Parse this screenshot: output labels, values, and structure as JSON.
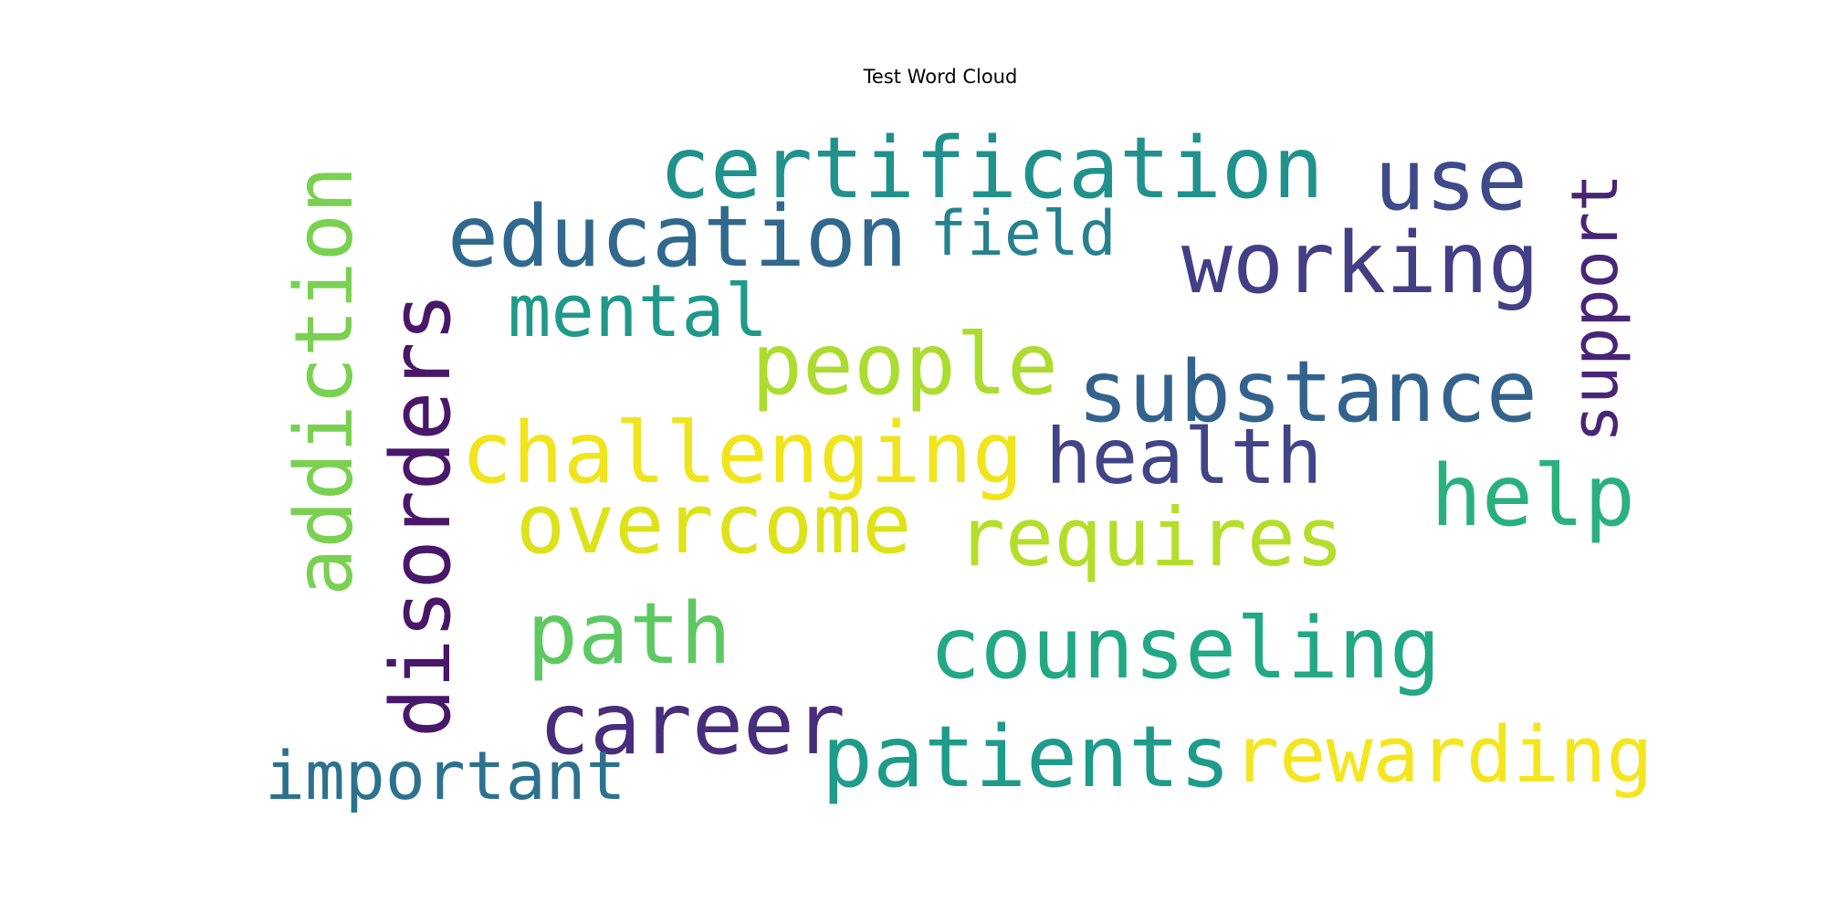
{
  "title": "Test Word Cloud",
  "words": [
    {
      "text": "certification",
      "color": "#21918c"
    },
    {
      "text": "use",
      "color": "#3e4a89"
    },
    {
      "text": "support",
      "color": "#482576"
    },
    {
      "text": "education",
      "color": "#31688e"
    },
    {
      "text": "field",
      "color": "#26828e"
    },
    {
      "text": "working",
      "color": "#433e85"
    },
    {
      "text": "addiction",
      "color": "#7ad151"
    },
    {
      "text": "disorders",
      "color": "#481769"
    },
    {
      "text": "mental",
      "color": "#1f998a"
    },
    {
      "text": "people",
      "color": "#addc30"
    },
    {
      "text": "substance",
      "color": "#33638d"
    },
    {
      "text": "challenging",
      "color": "#f0e51c"
    },
    {
      "text": "health",
      "color": "#414487"
    },
    {
      "text": "help",
      "color": "#2ab07f"
    },
    {
      "text": "overcome",
      "color": "#dde318"
    },
    {
      "text": "requires",
      "color": "#b5de2b"
    },
    {
      "text": "path",
      "color": "#5ec962"
    },
    {
      "text": "counseling",
      "color": "#22a884"
    },
    {
      "text": "career",
      "color": "#472d7b"
    },
    {
      "text": "patients",
      "color": "#1e9b8a"
    },
    {
      "text": "rewarding",
      "color": "#f4e61e"
    },
    {
      "text": "important",
      "color": "#2c728e"
    }
  ]
}
